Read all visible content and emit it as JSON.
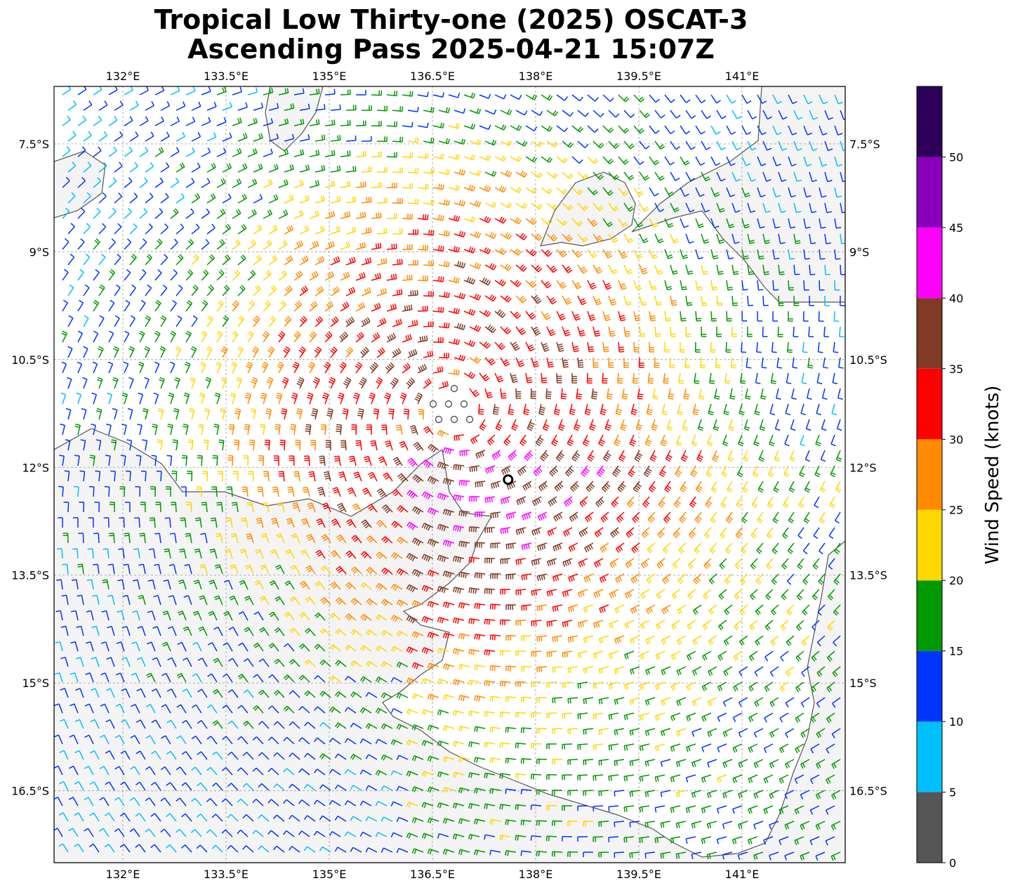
{
  "title": {
    "line1": "Tropical Low Thirty-one (2025) OSCAT-3",
    "line2": "Ascending Pass 2025-04-21 15:07Z"
  },
  "map": {
    "lon_range": [
      131.0,
      142.5
    ],
    "lat_range": [
      -17.5,
      -6.7
    ],
    "lon_ticks": [
      {
        "value": 132.0,
        "label": "132°E"
      },
      {
        "value": 133.5,
        "label": "133.5°E"
      },
      {
        "value": 135.0,
        "label": "135°E"
      },
      {
        "value": 136.5,
        "label": "136.5°E"
      },
      {
        "value": 138.0,
        "label": "138°E"
      },
      {
        "value": 139.5,
        "label": "139.5°E"
      },
      {
        "value": 141.0,
        "label": "141°E"
      }
    ],
    "lat_ticks": [
      {
        "value": -7.5,
        "label": "7.5°S"
      },
      {
        "value": -9.0,
        "label": "9°S"
      },
      {
        "value": -10.5,
        "label": "10.5°S"
      },
      {
        "value": -12.0,
        "label": "12°S"
      },
      {
        "value": -13.5,
        "label": "13.5°S"
      },
      {
        "value": -15.0,
        "label": "15°S"
      },
      {
        "value": -16.5,
        "label": "16.5°S"
      }
    ],
    "gridlines": "dashed",
    "storm_center": {
      "lon": 136.8,
      "lat": -11.2
    },
    "land_color": "#f2f2f2",
    "coast_color": "#555555"
  },
  "colorbar": {
    "label": "Wind Speed (knots)",
    "ticks": [
      {
        "value": 0,
        "label": "0"
      },
      {
        "value": 5,
        "label": "5"
      },
      {
        "value": 10,
        "label": "10"
      },
      {
        "value": 15,
        "label": "15"
      },
      {
        "value": 20,
        "label": "20"
      },
      {
        "value": 25,
        "label": "25"
      },
      {
        "value": 30,
        "label": "30"
      },
      {
        "value": 35,
        "label": "35"
      },
      {
        "value": 40,
        "label": "40"
      },
      {
        "value": 45,
        "label": "45"
      },
      {
        "value": 50,
        "label": "50"
      }
    ],
    "bins": [
      {
        "from": 0,
        "to": 5,
        "color": "#555555"
      },
      {
        "from": 5,
        "to": 10,
        "color": "#00bfff"
      },
      {
        "from": 10,
        "to": 15,
        "color": "#0033ff"
      },
      {
        "from": 15,
        "to": 20,
        "color": "#009900"
      },
      {
        "from": 20,
        "to": 25,
        "color": "#ffd700"
      },
      {
        "from": 25,
        "to": 30,
        "color": "#ff8c00"
      },
      {
        "from": 30,
        "to": 35,
        "color": "#ff0000"
      },
      {
        "from": 35,
        "to": 40,
        "color": "#803a25"
      },
      {
        "from": 40,
        "to": 45,
        "color": "#ff00ff"
      },
      {
        "from": 45,
        "to": 50,
        "color": "#8800bb"
      },
      {
        "from": 50,
        "to": 55,
        "color": "#2e0059"
      }
    ],
    "range": [
      0,
      55
    ]
  }
}
